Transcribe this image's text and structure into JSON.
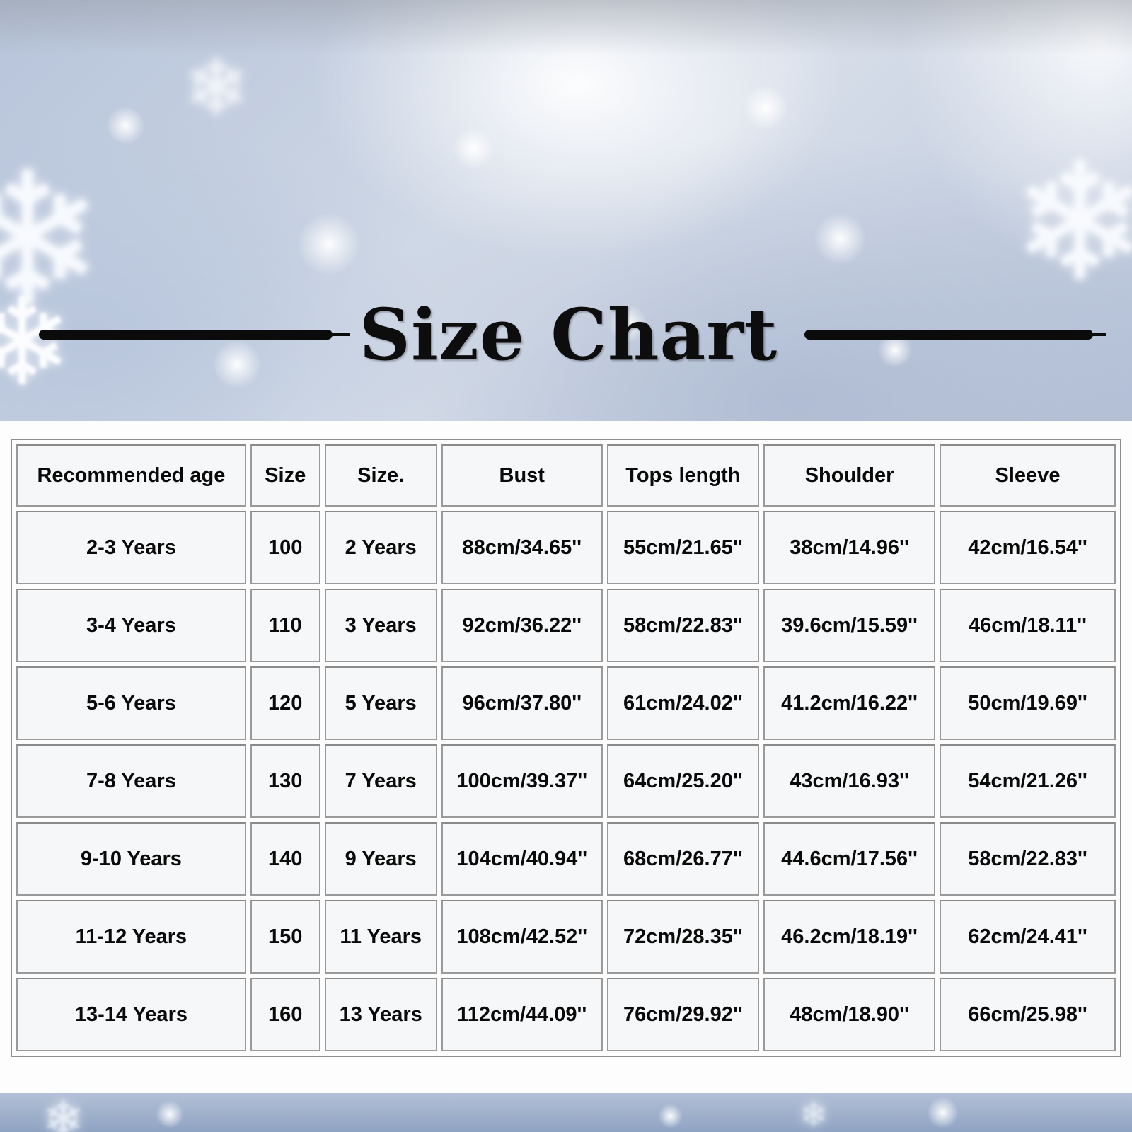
{
  "title": "Size Chart",
  "decor": {
    "snowflake_glyph": "❄"
  },
  "colors": {
    "title_text": "#0d0d0d",
    "rule_bar": "#0b0b0b",
    "hero_sky": "#c8d2e2",
    "footer_sky": "#8fa3c3",
    "cell_border": "#9a9a9a",
    "cell_background": "#f6f7f8",
    "table_background": "#fdfdfd",
    "cell_text": "#0a0a0a"
  },
  "chart_data": {
    "type": "table",
    "title": "Size Chart",
    "columns": [
      "Recommended age",
      "Size",
      "Size.",
      "Bust",
      "Tops length",
      "Shoulder",
      "Sleeve"
    ],
    "rows": [
      [
        "2-3 Years",
        "100",
        "2 Years",
        "88cm/34.65''",
        "55cm/21.65''",
        "38cm/14.96''",
        "42cm/16.54''"
      ],
      [
        "3-4 Years",
        "110",
        "3 Years",
        "92cm/36.22''",
        "58cm/22.83''",
        "39.6cm/15.59''",
        "46cm/18.11''"
      ],
      [
        "5-6 Years",
        "120",
        "5 Years",
        "96cm/37.80''",
        "61cm/24.02''",
        "41.2cm/16.22''",
        "50cm/19.69''"
      ],
      [
        "7-8 Years",
        "130",
        "7 Years",
        "100cm/39.37''",
        "64cm/25.20''",
        "43cm/16.93''",
        "54cm/21.26''"
      ],
      [
        "9-10 Years",
        "140",
        "9 Years",
        "104cm/40.94''",
        "68cm/26.77''",
        "44.6cm/17.56''",
        "58cm/22.83''"
      ],
      [
        "11-12 Years",
        "150",
        "11 Years",
        "108cm/42.52''",
        "72cm/28.35''",
        "46.2cm/18.19''",
        "62cm/24.41''"
      ],
      [
        "13-14 Years",
        "160",
        "13 Years",
        "112cm/44.09''",
        "76cm/29.92''",
        "48cm/18.90''",
        "66cm/25.98''"
      ]
    ]
  }
}
